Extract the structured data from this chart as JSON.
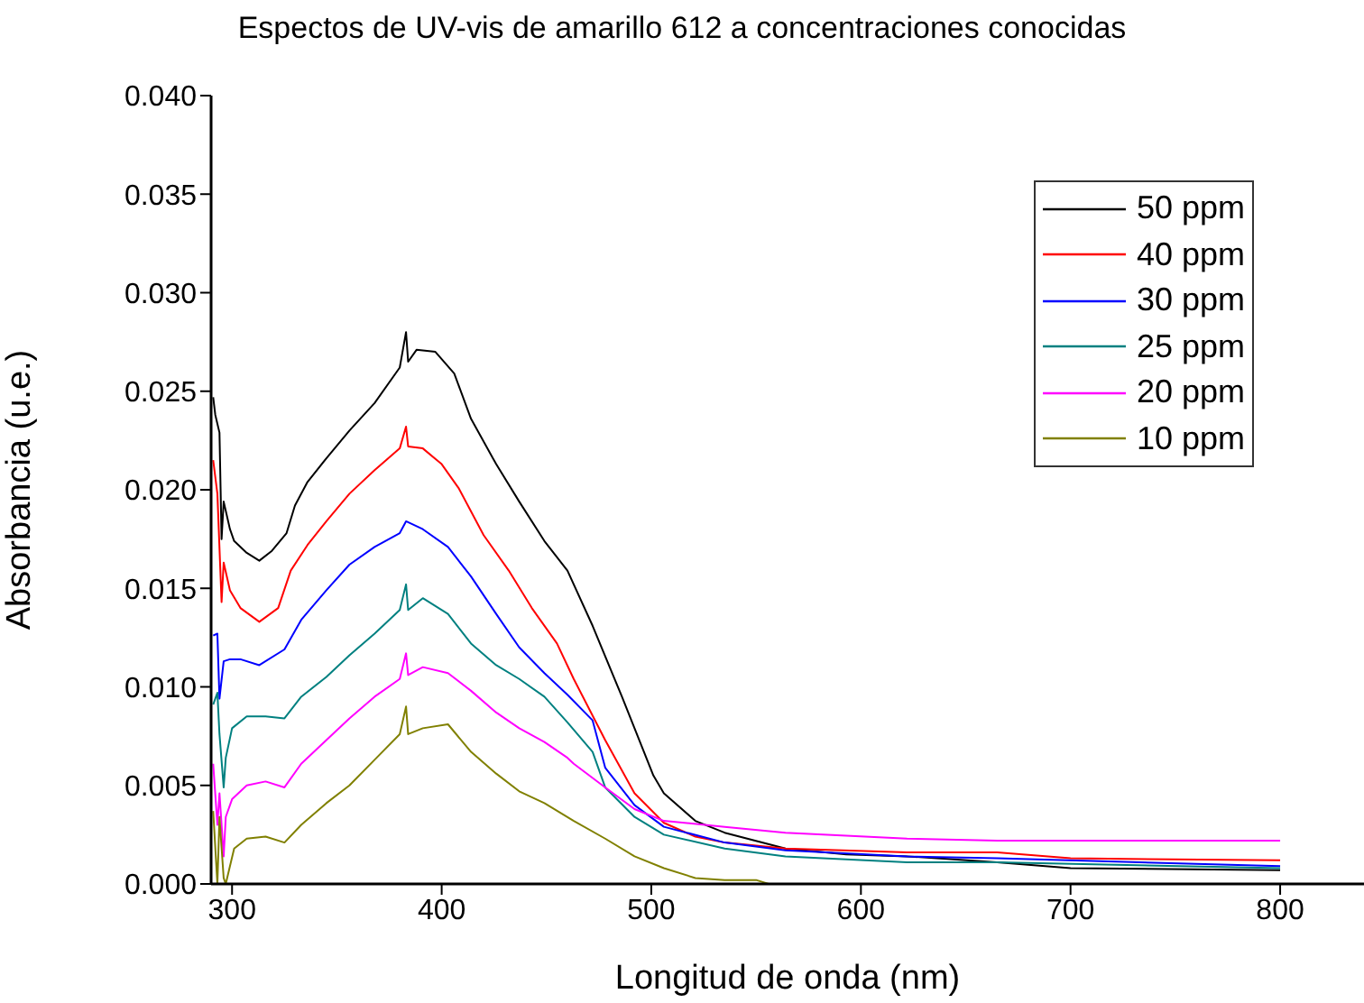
{
  "chart_data": {
    "type": "line",
    "title": "Espectos de UV-vis de amarillo 612 a concentraciones conocidas",
    "xlabel": "Longitud de onda (nm)",
    "ylabel": "Absorbancia (u.e.)",
    "xlim": [
      290,
      840
    ],
    "xticks": [
      300,
      400,
      500,
      600,
      700,
      800
    ],
    "ylim": [
      0,
      0.04
    ],
    "yticks": [
      {
        "value": 0,
        "label": "0.000"
      },
      {
        "value": 0.005,
        "label": "0.005"
      },
      {
        "value": 0.01,
        "label": "0.010"
      },
      {
        "value": 0.015,
        "label": "0.015"
      },
      {
        "value": 0.02,
        "label": "0.020"
      },
      {
        "value": 0.025,
        "label": "0.025"
      },
      {
        "value": 0.03,
        "label": "0.030"
      },
      {
        "value": 0.035,
        "label": "0.035"
      },
      {
        "value": 0.04,
        "label": "0.040"
      }
    ],
    "grid": false,
    "legend": "top right",
    "marker": "none",
    "line_style": "solid",
    "series": [
      {
        "name": "50 ppm",
        "color": "#000000",
        "x": [
          291,
          292,
          294,
          295,
          296,
          299,
          301,
          307,
          313,
          319,
          326,
          330,
          336,
          345,
          356,
          368,
          380,
          383,
          384,
          388,
          397,
          406,
          414,
          426,
          437,
          449,
          460,
          472,
          486,
          501,
          506,
          521,
          535,
          564,
          593,
          622,
          665,
          700,
          800
        ],
        "values": [
          0.0247,
          0.0238,
          0.0229,
          0.0175,
          0.0194,
          0.018,
          0.0174,
          0.0168,
          0.0164,
          0.0169,
          0.0178,
          0.0192,
          0.0204,
          0.0216,
          0.023,
          0.0244,
          0.0262,
          0.028,
          0.0265,
          0.0271,
          0.027,
          0.0259,
          0.0236,
          0.0213,
          0.0194,
          0.0174,
          0.0159,
          0.0131,
          0.0095,
          0.0055,
          0.0046,
          0.0032,
          0.0026,
          0.0018,
          0.0015,
          0.0014,
          0.0011,
          0.0008,
          0.0007
        ]
      },
      {
        "name": "40 ppm",
        "color": "#ff0000",
        "x": [
          291,
          293,
          295,
          296,
          299,
          304,
          313,
          322,
          328,
          336,
          345,
          356,
          368,
          380,
          383,
          384,
          391,
          400,
          408,
          420,
          432,
          443,
          455,
          463,
          478,
          492,
          506,
          521,
          535,
          564,
          622,
          665,
          700,
          800
        ],
        "values": [
          0.0215,
          0.0198,
          0.0143,
          0.0163,
          0.0149,
          0.014,
          0.0133,
          0.014,
          0.0159,
          0.0172,
          0.0184,
          0.0198,
          0.021,
          0.0221,
          0.0232,
          0.0222,
          0.0221,
          0.0213,
          0.0201,
          0.0177,
          0.0159,
          0.014,
          0.0122,
          0.0104,
          0.0073,
          0.0046,
          0.0031,
          0.0024,
          0.0021,
          0.0018,
          0.0016,
          0.0016,
          0.0013,
          0.0012
        ]
      },
      {
        "name": "30 ppm",
        "color": "#0000ff",
        "x": [
          291,
          293,
          294,
          296,
          299,
          304,
          313,
          325,
          333,
          345,
          356,
          368,
          380,
          383,
          391,
          403,
          414,
          426,
          437,
          449,
          460,
          472,
          478,
          492,
          506,
          535,
          564,
          622,
          665,
          800
        ],
        "values": [
          0.0126,
          0.0127,
          0.0094,
          0.0113,
          0.0114,
          0.0114,
          0.0111,
          0.0119,
          0.0134,
          0.0149,
          0.0162,
          0.0171,
          0.0178,
          0.0184,
          0.018,
          0.0171,
          0.0156,
          0.0137,
          0.012,
          0.0107,
          0.0096,
          0.0083,
          0.0059,
          0.004,
          0.0029,
          0.0021,
          0.0017,
          0.0014,
          0.0013,
          0.0009
        ]
      },
      {
        "name": "25 ppm",
        "color": "#008080",
        "x": [
          291,
          293,
          294,
          296,
          297,
          300,
          307,
          316,
          325,
          333,
          345,
          356,
          368,
          380,
          383,
          384,
          391,
          403,
          414,
          426,
          437,
          449,
          460,
          472,
          478,
          492,
          506,
          535,
          564,
          622,
          665,
          800
        ],
        "values": [
          0.0091,
          0.0097,
          0.0076,
          0.0049,
          0.0064,
          0.0079,
          0.0085,
          0.0085,
          0.0084,
          0.0095,
          0.0105,
          0.0116,
          0.0127,
          0.0139,
          0.0152,
          0.0139,
          0.0145,
          0.0137,
          0.0122,
          0.0111,
          0.0104,
          0.0095,
          0.0082,
          0.0067,
          0.0049,
          0.0034,
          0.0025,
          0.0018,
          0.0014,
          0.0011,
          0.0011,
          0.0008
        ]
      },
      {
        "name": "20 ppm",
        "color": "#ff00ff",
        "x": [
          291,
          293,
          294,
          296,
          297,
          300,
          307,
          316,
          325,
          333,
          345,
          356,
          368,
          380,
          383,
          384,
          391,
          403,
          414,
          426,
          437,
          449,
          460,
          463,
          478,
          492,
          506,
          535,
          564,
          622,
          665,
          800
        ],
        "values": [
          0.0061,
          0.003,
          0.0046,
          0.0014,
          0.0034,
          0.0043,
          0.005,
          0.0052,
          0.0049,
          0.0061,
          0.0073,
          0.0084,
          0.0095,
          0.0104,
          0.0117,
          0.0106,
          0.011,
          0.0107,
          0.0098,
          0.0087,
          0.0079,
          0.0072,
          0.0064,
          0.0061,
          0.0049,
          0.0038,
          0.0032,
          0.0029,
          0.0026,
          0.0023,
          0.0022,
          0.0022
        ]
      },
      {
        "name": "10 ppm",
        "color": "#808000",
        "x": [
          291,
          293,
          294,
          296,
          297,
          299,
          301,
          307,
          316,
          325,
          333,
          345,
          356,
          368,
          380,
          383,
          384,
          391,
          403,
          414,
          426,
          437,
          449,
          463,
          478,
          492,
          506,
          521,
          535,
          550,
          556
        ],
        "values": [
          0.0037,
          0,
          0.0034,
          0.0003,
          0,
          0.0009,
          0.0018,
          0.0023,
          0.0024,
          0.0021,
          0.003,
          0.0041,
          0.005,
          0.0063,
          0.0076,
          0.009,
          0.0076,
          0.0079,
          0.0081,
          0.0067,
          0.0056,
          0.0047,
          0.0041,
          0.0032,
          0.0023,
          0.0014,
          0.0008,
          0.0003,
          0.0002,
          0.0002,
          0
        ]
      }
    ]
  }
}
